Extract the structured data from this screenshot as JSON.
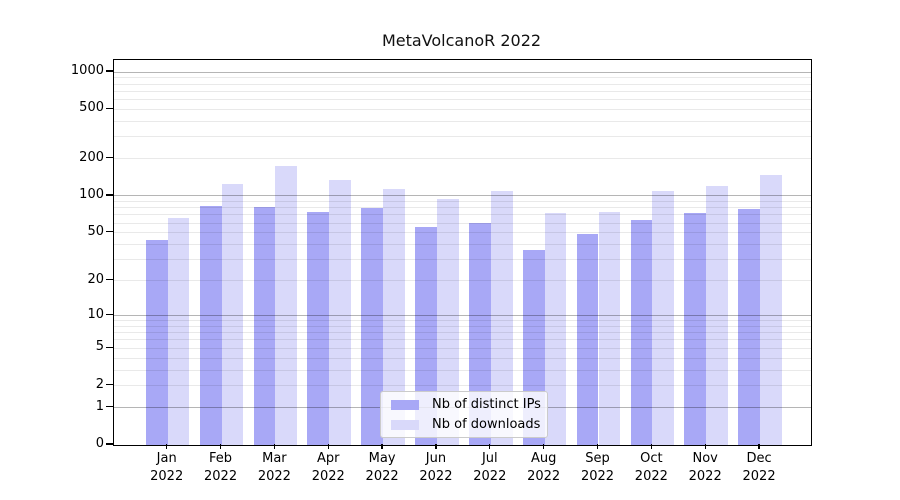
{
  "chart_data": {
    "type": "bar",
    "title": "MetaVolcanoR 2022",
    "categories": [
      "Jan 2022",
      "Feb 2022",
      "Mar 2022",
      "Apr 2022",
      "May 2022",
      "Jun 2022",
      "Jul 2022",
      "Aug 2022",
      "Sep 2022",
      "Oct 2022",
      "Nov 2022",
      "Dec 2022"
    ],
    "series": [
      {
        "name": "Nb of distinct IPs",
        "color": "#a8a8f6",
        "values": [
          44,
          83,
          81,
          74,
          80,
          56,
          60,
          36,
          49,
          64,
          73,
          78
        ]
      },
      {
        "name": "Nb of downloads",
        "color": "#d9d9fa",
        "values": [
          66,
          126,
          175,
          134,
          114,
          95,
          110,
          72,
          74,
          110,
          120,
          147
        ]
      }
    ],
    "xlabel": "",
    "ylabel": "",
    "yscale": "log1p",
    "y_ticks": [
      0,
      1,
      2,
      5,
      10,
      20,
      50,
      100,
      200,
      500,
      1000
    ],
    "ylim": [
      0,
      1250
    ],
    "grid": {
      "major_lines": [
        1,
        10,
        100,
        1000
      ],
      "minor_decades": [
        1,
        10,
        100
      ],
      "minor_multiples": [
        2,
        3,
        4,
        5,
        6,
        7,
        8,
        9
      ],
      "major_color": "rgba(0,0,0,0.29)",
      "minor_color": "rgba(0,0,0,0.085)"
    },
    "legend_position": "lower center",
    "axis_color": "#000000",
    "background_color": "#ffffff"
  }
}
